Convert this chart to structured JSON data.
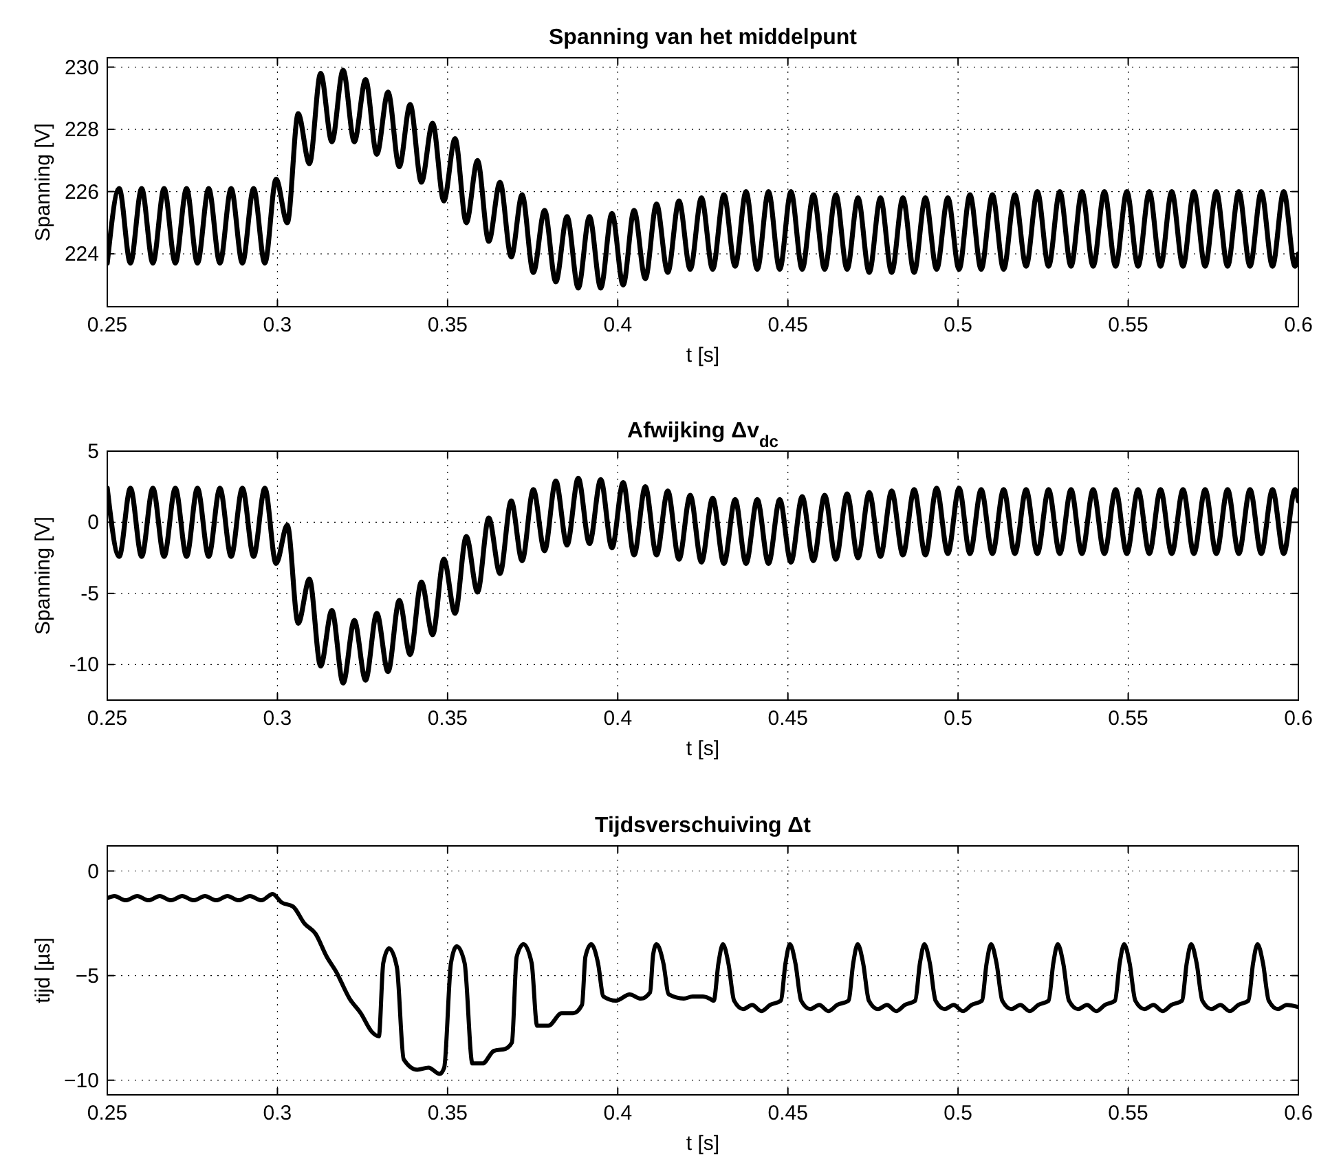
{
  "chart_data": [
    {
      "type": "line",
      "title": "Spanning van het middelpunt",
      "xlabel": "t [s]",
      "ylabel": "Spanning [V]",
      "grid": true,
      "line_style": "solid",
      "xlim": [
        0.25,
        0.6
      ],
      "xticks": [
        0.25,
        0.3,
        0.35,
        0.4,
        0.45,
        0.5,
        0.55,
        0.6
      ],
      "ylim": [
        222.3,
        230.3
      ],
      "yticks": [
        224,
        226,
        228,
        230
      ],
      "x": [
        0.25,
        0.2535,
        0.2568,
        0.2601,
        0.2634,
        0.2667,
        0.27,
        0.2733,
        0.2765,
        0.2798,
        0.2831,
        0.2864,
        0.2897,
        0.293,
        0.2963,
        0.2996,
        0.3029,
        0.3061,
        0.3094,
        0.3127,
        0.316,
        0.3193,
        0.3226,
        0.3259,
        0.3292,
        0.3325,
        0.3358,
        0.339,
        0.3423,
        0.3456,
        0.3489,
        0.3522,
        0.3555,
        0.3588,
        0.3621,
        0.3654,
        0.3687,
        0.3719,
        0.3752,
        0.3785,
        0.3818,
        0.3851,
        0.3884,
        0.3917,
        0.395,
        0.3983,
        0.4016,
        0.4048,
        0.4081,
        0.4114,
        0.4147,
        0.418,
        0.4213,
        0.4246,
        0.4279,
        0.4312,
        0.4345,
        0.4377,
        0.441,
        0.4443,
        0.4476,
        0.4509,
        0.4542,
        0.4575,
        0.4608,
        0.4641,
        0.4674,
        0.4706,
        0.4739,
        0.4772,
        0.4805,
        0.4838,
        0.4871,
        0.4904,
        0.4937,
        0.497,
        0.5003,
        0.5035,
        0.5068,
        0.5101,
        0.5134,
        0.5167,
        0.52,
        0.5233,
        0.5266,
        0.5299,
        0.5332,
        0.5364,
        0.5397,
        0.543,
        0.5463,
        0.5496,
        0.5529,
        0.5562,
        0.5595,
        0.5628,
        0.5661,
        0.5693,
        0.5726,
        0.5759,
        0.5792,
        0.5825,
        0.5858,
        0.5891,
        0.5924,
        0.5957,
        0.599,
        0.6
      ],
      "series": [
        {
          "color": "#000000",
          "values": [
            223.7,
            226.1,
            223.7,
            226.1,
            223.7,
            226.1,
            223.7,
            226.1,
            223.7,
            226.1,
            223.7,
            226.1,
            223.7,
            226.1,
            223.7,
            226.4,
            225.0,
            228.5,
            226.9,
            229.8,
            227.6,
            229.9,
            227.6,
            229.6,
            227.2,
            229.2,
            226.8,
            228.8,
            226.3,
            228.2,
            225.7,
            227.7,
            225.0,
            227.0,
            224.4,
            226.3,
            223.9,
            225.9,
            223.4,
            225.4,
            223.1,
            225.2,
            222.9,
            225.2,
            222.9,
            225.3,
            223.0,
            225.4,
            223.2,
            225.6,
            223.4,
            225.7,
            223.5,
            225.8,
            223.5,
            225.9,
            223.6,
            226.0,
            223.5,
            226.0,
            223.5,
            226.0,
            223.5,
            225.9,
            223.5,
            225.9,
            223.5,
            225.8,
            223.4,
            225.8,
            223.4,
            225.8,
            223.4,
            225.8,
            223.5,
            225.8,
            223.5,
            225.9,
            223.5,
            225.9,
            223.5,
            225.9,
            223.6,
            226.0,
            223.6,
            226.0,
            223.6,
            226.0,
            223.6,
            226.0,
            223.6,
            226.0,
            223.6,
            226.0,
            223.6,
            226.0,
            223.6,
            226.0,
            223.6,
            226.0,
            223.6,
            226.0,
            223.6,
            226.0,
            223.6,
            226.0,
            223.6,
            224.0
          ]
        }
      ]
    },
    {
      "type": "line",
      "title": "Afwijking Δv$_{dc}$",
      "xlabel": "t [s]",
      "ylabel": "Spanning [V]",
      "grid": true,
      "line_style": "solid",
      "xlim": [
        0.25,
        0.6
      ],
      "xticks": [
        0.25,
        0.3,
        0.35,
        0.4,
        0.45,
        0.5,
        0.55,
        0.6
      ],
      "ylim": [
        -12.5,
        5
      ],
      "yticks": [
        -10,
        -5,
        0,
        5
      ],
      "x": [
        0.25,
        0.2535,
        0.2568,
        0.2601,
        0.2634,
        0.2667,
        0.27,
        0.2733,
        0.2765,
        0.2798,
        0.2831,
        0.2864,
        0.2897,
        0.293,
        0.2963,
        0.2996,
        0.3029,
        0.3061,
        0.3094,
        0.3127,
        0.316,
        0.3193,
        0.3226,
        0.3259,
        0.3292,
        0.3325,
        0.3358,
        0.339,
        0.3423,
        0.3456,
        0.3489,
        0.3522,
        0.3555,
        0.3588,
        0.3621,
        0.3654,
        0.3687,
        0.3719,
        0.3752,
        0.3785,
        0.3818,
        0.3851,
        0.3884,
        0.3917,
        0.395,
        0.3983,
        0.4016,
        0.4048,
        0.4081,
        0.4114,
        0.4147,
        0.418,
        0.4213,
        0.4246,
        0.4279,
        0.4312,
        0.4345,
        0.4377,
        0.441,
        0.4443,
        0.4476,
        0.4509,
        0.4542,
        0.4575,
        0.4608,
        0.4641,
        0.4674,
        0.4706,
        0.4739,
        0.4772,
        0.4805,
        0.4838,
        0.4871,
        0.4904,
        0.4937,
        0.497,
        0.5003,
        0.5035,
        0.5068,
        0.5101,
        0.5134,
        0.5167,
        0.52,
        0.5233,
        0.5266,
        0.5299,
        0.5332,
        0.5364,
        0.5397,
        0.543,
        0.5463,
        0.5496,
        0.5529,
        0.5562,
        0.5595,
        0.5628,
        0.5661,
        0.5693,
        0.5726,
        0.5759,
        0.5792,
        0.5825,
        0.5858,
        0.5891,
        0.5924,
        0.5957,
        0.599,
        0.6
      ],
      "series": [
        {
          "color": "#000000",
          "values": [
            2.4,
            -2.4,
            2.4,
            -2.4,
            2.4,
            -2.4,
            2.4,
            -2.4,
            2.4,
            -2.4,
            2.4,
            -2.4,
            2.4,
            -2.4,
            2.4,
            -2.9,
            -0.2,
            -7.1,
            -4.0,
            -10.1,
            -6.2,
            -11.3,
            -6.9,
            -11.1,
            -6.4,
            -10.5,
            -5.5,
            -9.3,
            -4.2,
            -7.9,
            -2.6,
            -6.4,
            -1.0,
            -4.9,
            0.3,
            -3.6,
            1.5,
            -2.7,
            2.3,
            -2.0,
            2.9,
            -1.6,
            3.1,
            -1.5,
            3.0,
            -1.8,
            2.8,
            -2.3,
            2.5,
            -2.3,
            2.2,
            -2.6,
            1.9,
            -2.8,
            1.7,
            -2.9,
            1.6,
            -2.9,
            1.6,
            -2.9,
            1.6,
            -2.8,
            1.8,
            -2.7,
            1.9,
            -2.6,
            2.0,
            -2.5,
            2.1,
            -2.4,
            2.2,
            -2.3,
            2.3,
            -2.3,
            2.4,
            -2.2,
            2.4,
            -2.2,
            2.3,
            -2.2,
            2.3,
            -2.2,
            2.3,
            -2.2,
            2.3,
            -2.2,
            2.3,
            -2.2,
            2.3,
            -2.2,
            2.3,
            -2.2,
            2.3,
            -2.2,
            2.3,
            -2.2,
            2.3,
            -2.2,
            2.3,
            -2.2,
            2.3,
            -2.2,
            2.3,
            -2.2,
            2.3,
            -2.2,
            2.3,
            1.5
          ]
        }
      ]
    },
    {
      "type": "line",
      "title": "Tijdsverschuiving Δt",
      "xlabel": "t [s]",
      "ylabel": "tijd [µs]",
      "grid": true,
      "line_style": "solid",
      "xlim": [
        0.25,
        0.6
      ],
      "xticks": [
        0.25,
        0.3,
        0.35,
        0.4,
        0.45,
        0.5,
        0.55,
        0.6
      ],
      "ylim": [
        -10.7,
        1.2
      ],
      "yticks": [
        {
          "value": -10,
          "label": "−10"
        },
        {
          "value": -5,
          "label": "−5"
        },
        0
      ],
      "x": [
        0.25,
        0.2521,
        0.2554,
        0.2588,
        0.2621,
        0.2654,
        0.2687,
        0.272,
        0.2754,
        0.2787,
        0.282,
        0.2853,
        0.2886,
        0.2919,
        0.2953,
        0.2986,
        0.3012,
        0.3046,
        0.3079,
        0.3112,
        0.3145,
        0.3172,
        0.3212,
        0.3245,
        0.3278,
        0.3298,
        0.3311,
        0.3328,
        0.3351,
        0.3371,
        0.3411,
        0.3444,
        0.3477,
        0.349,
        0.351,
        0.3527,
        0.355,
        0.3573,
        0.3603,
        0.3636,
        0.367,
        0.3689,
        0.3703,
        0.3723,
        0.3747,
        0.3763,
        0.3796,
        0.3835,
        0.3869,
        0.3895,
        0.3905,
        0.3922,
        0.3942,
        0.3958,
        0.3995,
        0.4035,
        0.4068,
        0.4095,
        0.4104,
        0.4114,
        0.4134,
        0.415,
        0.4194,
        0.422,
        0.425,
        0.427,
        0.4282,
        0.4296,
        0.4309,
        0.4325,
        0.4342,
        0.4369,
        0.4395,
        0.4422,
        0.4448,
        0.4479,
        0.4493,
        0.4506,
        0.4522,
        0.4539,
        0.4566,
        0.4592,
        0.4619,
        0.4645,
        0.4678,
        0.4692,
        0.4705,
        0.4721,
        0.4738,
        0.4765,
        0.4791,
        0.4818,
        0.4844,
        0.4874,
        0.4888,
        0.4901,
        0.4917,
        0.4934,
        0.4961,
        0.4987,
        0.5014,
        0.504,
        0.507,
        0.5084,
        0.5097,
        0.5113,
        0.513,
        0.5157,
        0.5183,
        0.521,
        0.5236,
        0.5266,
        0.528,
        0.5293,
        0.5309,
        0.5326,
        0.5353,
        0.5379,
        0.5406,
        0.5432,
        0.5461,
        0.5475,
        0.5488,
        0.5504,
        0.5521,
        0.5548,
        0.5574,
        0.5601,
        0.5627,
        0.5658,
        0.5672,
        0.5685,
        0.5701,
        0.5718,
        0.5745,
        0.5771,
        0.5798,
        0.5824,
        0.5853,
        0.5867,
        0.588,
        0.5896,
        0.5913,
        0.594,
        0.5966,
        0.6
      ],
      "series": [
        {
          "color": "#000000",
          "values": [
            -1.3,
            -1.2,
            -1.4,
            -1.2,
            -1.4,
            -1.2,
            -1.4,
            -1.2,
            -1.4,
            -1.2,
            -1.4,
            -1.2,
            -1.4,
            -1.2,
            -1.4,
            -1.1,
            -1.5,
            -1.7,
            -2.5,
            -3.0,
            -4.1,
            -4.8,
            -6.1,
            -6.8,
            -7.7,
            -7.9,
            -4.4,
            -3.7,
            -4.6,
            -9.0,
            -9.5,
            -9.4,
            -9.7,
            -9.4,
            -4.4,
            -3.6,
            -4.4,
            -9.2,
            -9.2,
            -8.6,
            -8.5,
            -8.2,
            -4.1,
            -3.5,
            -4.4,
            -7.4,
            -7.4,
            -6.8,
            -6.8,
            -6.4,
            -4.1,
            -3.5,
            -4.4,
            -6.0,
            -6.2,
            -5.9,
            -6.1,
            -5.8,
            -4.0,
            -3.5,
            -4.4,
            -5.9,
            -6.1,
            -6.0,
            -6.0,
            -6.1,
            -6.2,
            -4.4,
            -3.5,
            -4.4,
            -6.2,
            -6.6,
            -6.4,
            -6.7,
            -6.4,
            -6.2,
            -4.4,
            -3.5,
            -4.4,
            -6.2,
            -6.6,
            -6.4,
            -6.7,
            -6.4,
            -6.2,
            -4.4,
            -3.5,
            -4.4,
            -6.2,
            -6.6,
            -6.4,
            -6.7,
            -6.4,
            -6.2,
            -4.4,
            -3.5,
            -4.4,
            -6.2,
            -6.6,
            -6.4,
            -6.7,
            -6.4,
            -6.2,
            -4.4,
            -3.5,
            -4.4,
            -6.2,
            -6.6,
            -6.4,
            -6.7,
            -6.4,
            -6.2,
            -4.4,
            -3.5,
            -4.4,
            -6.2,
            -6.6,
            -6.4,
            -6.7,
            -6.4,
            -6.2,
            -4.4,
            -3.5,
            -4.4,
            -6.2,
            -6.6,
            -6.4,
            -6.7,
            -6.4,
            -6.2,
            -4.4,
            -3.5,
            -4.4,
            -6.2,
            -6.6,
            -6.4,
            -6.7,
            -6.4,
            -6.2,
            -4.4,
            -3.5,
            -4.4,
            -6.2,
            -6.6,
            -6.4,
            -6.5
          ]
        }
      ]
    }
  ]
}
